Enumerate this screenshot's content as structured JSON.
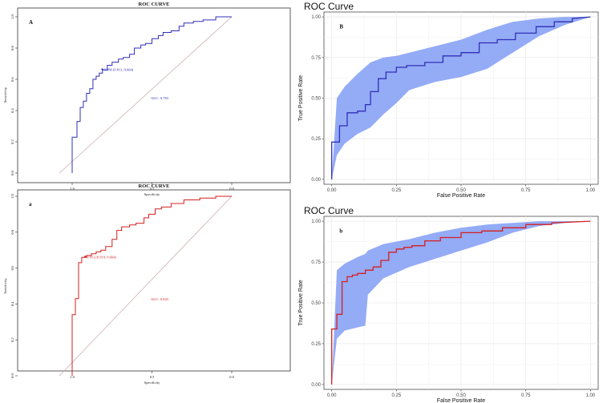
{
  "colors": {
    "blue": "#2f2fb8",
    "red": "#d42020",
    "band": "#8ea6f5",
    "diagonal": "#c8a8a8",
    "grid": "#ebebeb"
  },
  "chart_data": [
    {
      "id": "A",
      "type": "line",
      "panel_label": "A",
      "title": "ROC CURVE",
      "xlabel": "Specificity",
      "ylabel": "Sensitivity",
      "xlim": [
        1.0,
        0.0
      ],
      "ylim": [
        0.0,
        1.0
      ],
      "xticks": [
        1.0,
        0.5,
        0.0
      ],
      "xtick_labels": [
        "1.0",
        "0.5",
        "0.0"
      ],
      "yticks": [
        0.0,
        0.2,
        0.4,
        0.6,
        0.8,
        1.0
      ],
      "ytick_labels": [
        "0.0",
        "0.2",
        "0.4",
        "0.6",
        "0.8",
        "1.0"
      ],
      "threshold_label": "0.886 (0.811, 0.664)",
      "threshold_point": [
        0.811,
        0.664
      ],
      "auc_label": "AUC: 0.783",
      "series": [
        {
          "name": "ROC",
          "color_key": "blue",
          "x": [
            1.0,
            1.0,
            0.97,
            0.97,
            0.95,
            0.95,
            0.93,
            0.93,
            0.91,
            0.91,
            0.89,
            0.89,
            0.87,
            0.87,
            0.85,
            0.85,
            0.83,
            0.83,
            0.81,
            0.81,
            0.78,
            0.78,
            0.75,
            0.75,
            0.71,
            0.71,
            0.68,
            0.68,
            0.64,
            0.64,
            0.61,
            0.61,
            0.57,
            0.57,
            0.54,
            0.54,
            0.5,
            0.5,
            0.46,
            0.46,
            0.43,
            0.43,
            0.38,
            0.38,
            0.33,
            0.33,
            0.3,
            0.3,
            0.24,
            0.24,
            0.18,
            0.18,
            0.1,
            0.1,
            0.0
          ],
          "y": [
            0.0,
            0.23,
            0.23,
            0.33,
            0.33,
            0.42,
            0.42,
            0.46,
            0.46,
            0.51,
            0.51,
            0.54,
            0.54,
            0.6,
            0.6,
            0.62,
            0.62,
            0.64,
            0.64,
            0.66,
            0.66,
            0.69,
            0.69,
            0.71,
            0.71,
            0.73,
            0.73,
            0.74,
            0.74,
            0.76,
            0.76,
            0.8,
            0.8,
            0.82,
            0.82,
            0.83,
            0.83,
            0.86,
            0.86,
            0.88,
            0.88,
            0.9,
            0.9,
            0.91,
            0.91,
            0.94,
            0.94,
            0.96,
            0.96,
            0.97,
            0.97,
            0.98,
            0.98,
            1.0,
            1.0
          ]
        }
      ]
    },
    {
      "id": "B",
      "type": "area",
      "panel_label": "B",
      "title": "ROC Curve",
      "xlabel": "False Positive Rate",
      "ylabel": "True Positive Rate",
      "xlim": [
        -0.03,
        1.03
      ],
      "ylim": [
        -0.03,
        1.03
      ],
      "xticks": [
        0.0,
        0.25,
        0.5,
        0.75,
        1.0
      ],
      "xtick_labels": [
        "0.00",
        "0.25",
        "0.50",
        "0.75",
        "1.00"
      ],
      "yticks": [
        0.0,
        0.25,
        0.5,
        0.75,
        1.0
      ],
      "ytick_labels": [
        "0.00",
        "0.25",
        "0.50",
        "0.75",
        "1.00"
      ],
      "grid": true,
      "band": {
        "x": [
          0.0,
          0.02,
          0.05,
          0.1,
          0.15,
          0.2,
          0.25,
          0.3,
          0.4,
          0.5,
          0.6,
          0.7,
          0.8,
          0.9,
          1.0
        ],
        "lower": [
          0.0,
          0.15,
          0.22,
          0.28,
          0.32,
          0.4,
          0.47,
          0.55,
          0.6,
          0.63,
          0.68,
          0.78,
          0.88,
          0.95,
          1.0
        ],
        "upper": [
          0.0,
          0.5,
          0.57,
          0.65,
          0.72,
          0.75,
          0.76,
          0.78,
          0.82,
          0.86,
          0.92,
          0.97,
          0.99,
          1.0,
          1.0
        ]
      },
      "series": [
        {
          "name": "ROC",
          "color_key": "blue",
          "x": [
            0.0,
            0.0,
            0.03,
            0.03,
            0.06,
            0.06,
            0.1,
            0.1,
            0.13,
            0.13,
            0.15,
            0.15,
            0.18,
            0.18,
            0.21,
            0.21,
            0.25,
            0.25,
            0.29,
            0.29,
            0.36,
            0.36,
            0.43,
            0.43,
            0.5,
            0.5,
            0.57,
            0.57,
            0.64,
            0.64,
            0.71,
            0.71,
            0.79,
            0.79,
            0.86,
            0.86,
            0.93,
            0.93,
            1.0
          ],
          "y": [
            0.0,
            0.23,
            0.23,
            0.33,
            0.33,
            0.41,
            0.41,
            0.42,
            0.42,
            0.46,
            0.46,
            0.54,
            0.54,
            0.62,
            0.62,
            0.66,
            0.66,
            0.69,
            0.69,
            0.7,
            0.7,
            0.72,
            0.72,
            0.76,
            0.76,
            0.78,
            0.78,
            0.84,
            0.84,
            0.86,
            0.86,
            0.9,
            0.9,
            0.94,
            0.94,
            0.97,
            0.97,
            0.99,
            1.0
          ]
        }
      ]
    },
    {
      "id": "a",
      "type": "line",
      "panel_label": "a",
      "title": "ROC CURVE",
      "xlabel": "Specificity",
      "ylabel": "Sensitivity",
      "xlim": [
        1.0,
        0.0
      ],
      "ylim": [
        0.0,
        1.0
      ],
      "xticks": [
        1.0,
        0.5,
        0.0
      ],
      "xtick_labels": [
        "1.0",
        "0.5",
        "0.0"
      ],
      "yticks": [
        0.0,
        0.2,
        0.4,
        0.6,
        0.8,
        1.0
      ],
      "ytick_labels": [
        "0.0",
        "0.2",
        "0.4",
        "0.6",
        "0.8",
        "1.0"
      ],
      "threshold_label": "0.851 (0.919, 0.664)",
      "threshold_point": [
        0.919,
        0.664
      ],
      "auc_label": "AUC: 0.843",
      "series": [
        {
          "name": "ROC",
          "color_key": "red",
          "x": [
            1.0,
            1.0,
            0.98,
            0.98,
            0.96,
            0.96,
            0.94,
            0.94,
            0.91,
            0.91,
            0.88,
            0.88,
            0.85,
            0.85,
            0.82,
            0.82,
            0.79,
            0.79,
            0.75,
            0.75,
            0.72,
            0.72,
            0.69,
            0.69,
            0.64,
            0.64,
            0.6,
            0.6,
            0.55,
            0.55,
            0.52,
            0.52,
            0.48,
            0.48,
            0.44,
            0.44,
            0.38,
            0.38,
            0.3,
            0.3,
            0.2,
            0.2,
            0.1,
            0.1,
            0.0
          ],
          "y": [
            0.0,
            0.34,
            0.34,
            0.43,
            0.43,
            0.63,
            0.63,
            0.66,
            0.66,
            0.67,
            0.67,
            0.68,
            0.68,
            0.69,
            0.69,
            0.7,
            0.7,
            0.72,
            0.72,
            0.76,
            0.76,
            0.81,
            0.81,
            0.83,
            0.83,
            0.84,
            0.84,
            0.85,
            0.85,
            0.88,
            0.88,
            0.9,
            0.9,
            0.93,
            0.93,
            0.94,
            0.94,
            0.96,
            0.96,
            0.98,
            0.98,
            0.99,
            0.99,
            1.0,
            1.0
          ]
        }
      ]
    },
    {
      "id": "b",
      "type": "area",
      "panel_label": "b",
      "title": "ROC Curve",
      "xlabel": "False Positive Rate",
      "ylabel": "True Positive Rate",
      "xlim": [
        -0.03,
        1.03
      ],
      "ylim": [
        -0.03,
        1.03
      ],
      "xticks": [
        0.0,
        0.25,
        0.5,
        0.75,
        1.0
      ],
      "xtick_labels": [
        "0.00",
        "0.25",
        "0.50",
        "0.75",
        "1.00"
      ],
      "yticks": [
        0.0,
        0.25,
        0.5,
        0.75,
        1.0
      ],
      "ytick_labels": [
        "0.00",
        "0.25",
        "0.50",
        "0.75",
        "1.00"
      ],
      "grid": true,
      "band": {
        "x": [
          0.0,
          0.02,
          0.05,
          0.1,
          0.13,
          0.14,
          0.2,
          0.3,
          0.4,
          0.5,
          0.6,
          0.7,
          0.8,
          0.9,
          1.0
        ],
        "lower": [
          0.0,
          0.28,
          0.33,
          0.35,
          0.36,
          0.55,
          0.65,
          0.72,
          0.77,
          0.82,
          0.87,
          0.93,
          0.97,
          0.99,
          1.0
        ],
        "upper": [
          0.0,
          0.7,
          0.74,
          0.78,
          0.8,
          0.82,
          0.86,
          0.89,
          0.93,
          0.96,
          0.98,
          0.99,
          1.0,
          1.0,
          1.0
        ]
      },
      "series": [
        {
          "name": "ROC",
          "color_key": "red",
          "x": [
            0.0,
            0.0,
            0.02,
            0.02,
            0.04,
            0.04,
            0.06,
            0.06,
            0.08,
            0.08,
            0.1,
            0.1,
            0.13,
            0.13,
            0.16,
            0.16,
            0.19,
            0.19,
            0.22,
            0.22,
            0.25,
            0.25,
            0.28,
            0.28,
            0.31,
            0.31,
            0.36,
            0.36,
            0.42,
            0.42,
            0.5,
            0.5,
            0.58,
            0.58,
            0.66,
            0.66,
            0.75,
            0.75,
            0.85,
            0.85,
            1.0
          ],
          "y": [
            0.0,
            0.34,
            0.34,
            0.43,
            0.43,
            0.63,
            0.63,
            0.66,
            0.66,
            0.67,
            0.67,
            0.68,
            0.68,
            0.7,
            0.7,
            0.72,
            0.72,
            0.76,
            0.76,
            0.81,
            0.81,
            0.83,
            0.83,
            0.84,
            0.84,
            0.85,
            0.85,
            0.88,
            0.88,
            0.9,
            0.9,
            0.93,
            0.93,
            0.94,
            0.94,
            0.96,
            0.96,
            0.98,
            0.98,
            0.99,
            1.0
          ]
        }
      ]
    }
  ]
}
